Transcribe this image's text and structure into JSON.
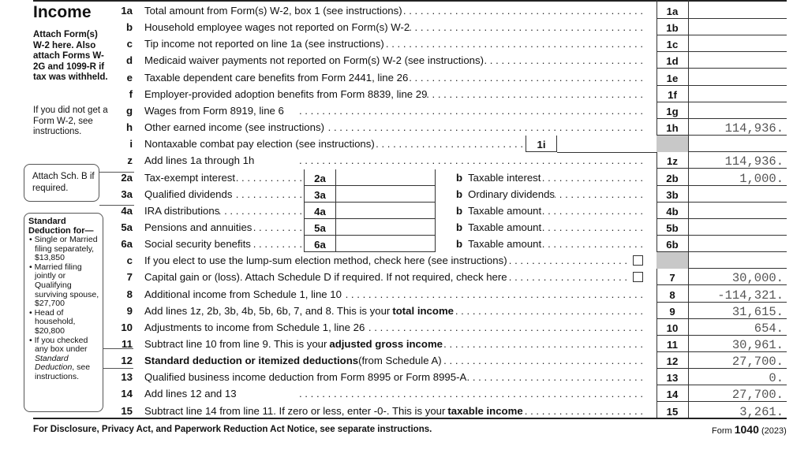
{
  "section_title": "Income",
  "sidebar": {
    "attach_note": "Attach Form(s) W-2 here. Also attach Forms W-2G and 1099-R if tax was withheld.",
    "no_w2_note": "If you did not get a Form W-2, see instructions.",
    "sch_b_note": "Attach Sch. B if required.",
    "std_deduction": {
      "heading": "Standard Deduction for—",
      "items": [
        "Single or Married filing separately, $13,850",
        "Married filing jointly or Qualifying surviving spouse, $27,700",
        "Head of household, $20,800"
      ],
      "last_item_pre": "If you checked any box under ",
      "last_item_italic": "Standard Deduction",
      "last_item_post": ", see instructions."
    }
  },
  "rows": [
    {
      "num": "1a",
      "text": "Total amount from Form(s) W-2, box 1 (see instructions)",
      "box": "1a",
      "amount": ""
    },
    {
      "num": "b",
      "text": "Household employee wages not reported on Form(s) W-2",
      "box": "1b",
      "amount": ""
    },
    {
      "num": "c",
      "text": "Tip income not reported on line 1a (see instructions)",
      "box": "1c",
      "amount": ""
    },
    {
      "num": "d",
      "text": "Medicaid waiver payments not reported on Form(s) W-2 (see instructions)",
      "box": "1d",
      "amount": ""
    },
    {
      "num": "e",
      "text": "Taxable dependent care benefits from Form 2441, line 26",
      "box": "1e",
      "amount": ""
    },
    {
      "num": "f",
      "text": "Employer-provided adoption benefits from Form 8839, line 29",
      "box": "1f",
      "amount": ""
    },
    {
      "num": "g",
      "text": "Wages from Form 8919, line 6",
      "box": "1g",
      "amount": ""
    },
    {
      "num": "h",
      "text": "Other earned income (see instructions)",
      "box": "1h",
      "amount": "114,936."
    },
    {
      "num": "i",
      "text": "Nontaxable combat pay election (see instructions)",
      "inner_box": "1i",
      "box": "",
      "amount": "",
      "shaded": true
    },
    {
      "num": "z",
      "text": "Add lines 1a through 1h",
      "box": "1z",
      "amount": "114,936."
    },
    {
      "num": "2a",
      "text": "Tax-exempt interest",
      "mid_box": "2a",
      "b_label": "b",
      "b_text": "Taxable interest",
      "box": "2b",
      "amount": "1,000."
    },
    {
      "num": "3a",
      "text": "Qualified dividends",
      "mid_box": "3a",
      "b_label": "b",
      "b_text": "Ordinary dividends",
      "box": "3b",
      "amount": ""
    },
    {
      "num": "4a",
      "text": "IRA distributions",
      "mid_box": "4a",
      "b_label": "b",
      "b_text": "Taxable amount",
      "box": "4b",
      "amount": ""
    },
    {
      "num": "5a",
      "text": "Pensions and annuities",
      "mid_box": "5a",
      "b_label": "b",
      "b_text": "Taxable amount",
      "box": "5b",
      "amount": ""
    },
    {
      "num": "6a",
      "text": "Social security benefits",
      "mid_box": "6a",
      "b_label": "b",
      "b_text": "Taxable amount",
      "box": "6b",
      "amount": ""
    },
    {
      "num": "c",
      "text": "If you elect to use the lump-sum election method, check here (see instructions)",
      "checkbox": true,
      "box": "",
      "amount": "",
      "shaded": true,
      "no_amount": true
    },
    {
      "num": "7",
      "text": "Capital gain or (loss). Attach Schedule D if required. If not required, check here",
      "checkbox": true,
      "box": "7",
      "amount": "30,000."
    },
    {
      "num": "8",
      "text": "Additional income from Schedule 1, line 10",
      "box": "8",
      "amount": "-114,321."
    },
    {
      "num": "9",
      "text": "Add lines 1z, 2b, 3b, 4b, 5b, 6b, 7, and 8. This is your ",
      "bold": "total income",
      "box": "9",
      "amount": "31,615."
    },
    {
      "num": "10",
      "text": "Adjustments to income from Schedule 1, line 26",
      "box": "10",
      "amount": "654."
    },
    {
      "num": "11",
      "text": "Subtract line 10 from line 9. This is your ",
      "bold": "adjusted gross income",
      "box": "11",
      "amount": "30,961."
    },
    {
      "num": "12",
      "bold_first": "Standard deduction or itemized deductions",
      "text": " (from Schedule A)",
      "box": "12",
      "amount": "27,700."
    },
    {
      "num": "13",
      "text": "Qualified business income deduction from Form 8995 or Form 8995-A",
      "box": "13",
      "amount": "0."
    },
    {
      "num": "14",
      "text": "Add lines 12 and 13",
      "box": "14",
      "amount": "27,700."
    },
    {
      "num": "15",
      "text": "Subtract line 14 from line 11. If zero or less, enter -0-. This is your ",
      "bold": "taxable income",
      "box": "15",
      "amount": "3,261."
    }
  ],
  "footer": {
    "notice": "For Disclosure, Privacy Act, and Paperwork Reduction Act Notice, see separate instructions.",
    "form_prefix": "Form ",
    "form_number": "1040",
    "form_year": "(2023)"
  }
}
